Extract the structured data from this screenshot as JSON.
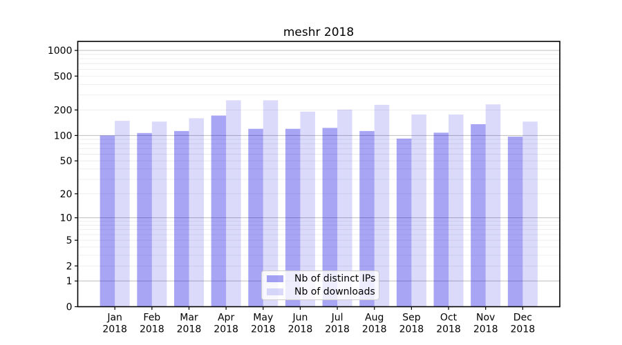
{
  "chart_data": {
    "type": "bar",
    "title": "meshr 2018",
    "scale": "log1p",
    "categories": [
      "Jan 2018",
      "Feb 2018",
      "Mar 2018",
      "Apr 2018",
      "May 2018",
      "Jun 2018",
      "Jul 2018",
      "Aug 2018",
      "Sep 2018",
      "Oct 2018",
      "Nov 2018",
      "Dec 2018"
    ],
    "series": [
      {
        "name": "Nb of distinct IPs",
        "color": "rgba(13,8,224,0.36)",
        "legend_color": "#a7a6f4",
        "values": [
          100,
          107,
          113,
          172,
          120,
          120,
          123,
          113,
          92,
          108,
          136,
          97
        ]
      },
      {
        "name": "Nb of downloads",
        "color": "rgba(13,8,224,0.15)",
        "legend_color": "#dadafa",
        "values": [
          149,
          146,
          160,
          260,
          260,
          191,
          202,
          230,
          177,
          177,
          233,
          146
        ]
      }
    ],
    "y_ticks": [
      1000,
      500,
      200,
      100,
      50,
      20,
      10,
      5,
      2,
      1,
      0
    ],
    "ylim": [
      0,
      1276
    ],
    "xlabel": "",
    "ylabel": "",
    "grid": {
      "major_color": "#c3c3c3",
      "minor_color": "#ebebeb"
    },
    "legend": {
      "position": "lower center"
    },
    "axis_color": "#000000",
    "text_color": "#000000"
  }
}
